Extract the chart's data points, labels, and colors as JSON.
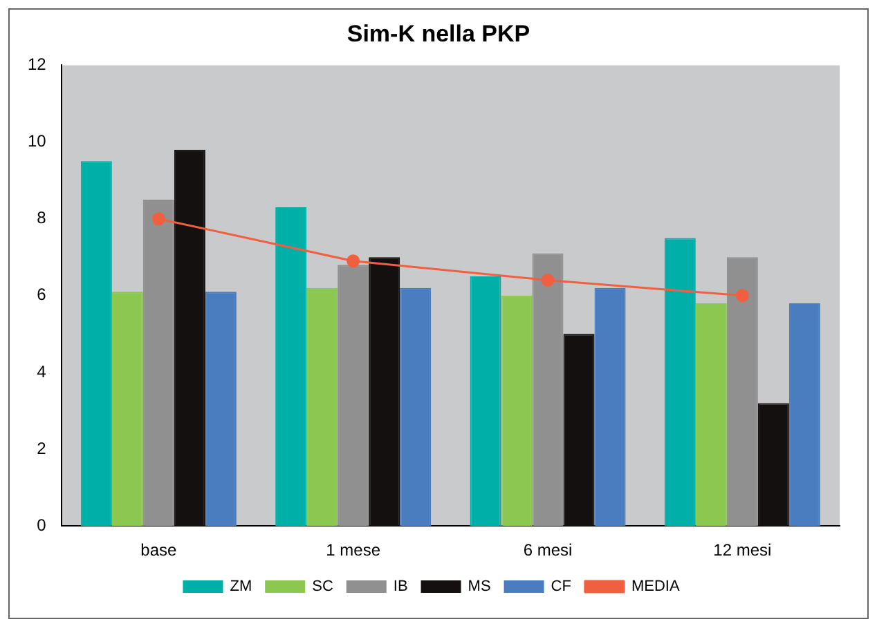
{
  "chart_data": {
    "type": "bar",
    "title": "Sim-K nella PKP",
    "categories": [
      "base",
      "1 mese",
      "6 mesi",
      "12 mesi"
    ],
    "series": [
      {
        "name": "ZM",
        "color": "#00b0a8",
        "values": [
          9.5,
          8.3,
          6.5,
          7.5
        ]
      },
      {
        "name": "SC",
        "color": "#8cc850",
        "values": [
          6.1,
          6.2,
          6.0,
          5.8
        ]
      },
      {
        "name": "IB",
        "color": "#909090",
        "values": [
          8.5,
          6.8,
          7.1,
          7.0
        ]
      },
      {
        "name": "MS",
        "color": "#141010",
        "values": [
          9.8,
          7.0,
          5.0,
          3.2
        ]
      },
      {
        "name": "CF",
        "color": "#4a7cc0",
        "values": [
          6.1,
          6.2,
          6.2,
          5.8
        ]
      },
      {
        "name": "MEDIA",
        "type": "line",
        "color": "#f06040",
        "values": [
          8.0,
          6.9,
          6.4,
          6.0
        ]
      }
    ],
    "ylim": [
      0,
      12
    ],
    "yticks": [
      0,
      2,
      4,
      6,
      8,
      10,
      12
    ],
    "grid": false,
    "legend": "bottom",
    "marker": "circle"
  }
}
